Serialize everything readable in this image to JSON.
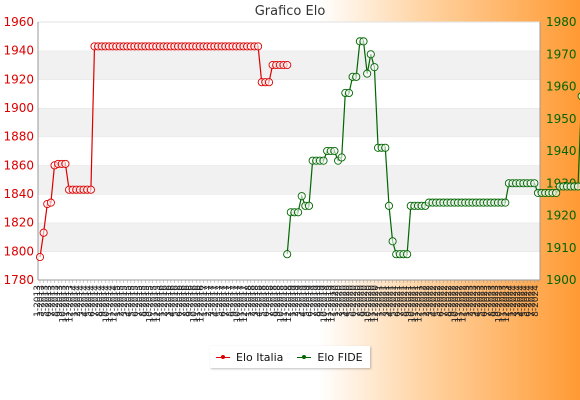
{
  "chart_data": {
    "type": "line",
    "title": "Grafico Elo",
    "y_left": {
      "min": 1780,
      "max": 1960,
      "ticks": [
        1780,
        1800,
        1820,
        1840,
        1860,
        1880,
        1900,
        1920,
        1940,
        1960
      ]
    },
    "y_right": {
      "min": 1900,
      "max": 1980,
      "ticks": [
        1900,
        1910,
        1920,
        1930,
        1940,
        1950,
        1960,
        1970,
        1980
      ]
    },
    "grid": "horizontal bands",
    "legend_position": "bottom-center",
    "x_tick_labels": [
      "1-2013",
      "3-2013",
      "5-2013",
      "6-2013",
      "7-2013",
      "8-2013",
      "9-2013",
      "10-2013",
      "11-2013",
      "12-2013",
      "1-2014",
      "2-2014",
      "3-2014",
      "4-2014",
      "5-2014",
      "6-2014",
      "7-2014",
      "8-2014",
      "9-2014",
      "10-2014",
      "11-2014",
      "12-2014",
      "1-2015",
      "2-2015",
      "3-2015",
      "4-2015",
      "5-2015",
      "6-2015",
      "7-2015",
      "8-2015",
      "9-2015",
      "10-2015",
      "11-2015",
      "12-2015",
      "1-2016",
      "2-2016",
      "3-2016",
      "4-2016",
      "5-2016",
      "6-2016",
      "7-2016",
      "8-2016",
      "9-2016",
      "10-2016",
      "11-2016",
      "12-2016",
      "1-2017",
      "2-2017",
      "3-2017",
      "4-2017",
      "5-2017",
      "6-2017",
      "7-2017",
      "8-2017",
      "9-2017",
      "10-2017",
      "11-2017",
      "12-2017",
      "1-2018",
      "2-2018",
      "3-2018",
      "4-2018",
      "5-2018",
      "6-2018",
      "7-2018",
      "8-2018",
      "9-2018",
      "10-2018",
      "11-2018",
      "12-2018",
      "1-2019",
      "2-2019",
      "3-2019",
      "4-2019",
      "5-2019",
      "6-2019",
      "7-2019",
      "8-2019",
      "9-2019",
      "10-2019",
      "11-2019",
      "12-2019",
      "1-2020",
      "2-2020",
      "3-2020",
      "4-2020",
      "5-2020",
      "6-2020",
      "7-2020",
      "8-2020",
      "9-2020",
      "10-2020",
      "11-2020",
      "12-2020",
      "1-2021",
      "2-2021",
      "3-2021",
      "4-2021",
      "5-2021",
      "6-2021",
      "7-2021",
      "8-2021",
      "9-2021",
      "10-2021",
      "11-2021",
      "12-2021",
      "1-2022",
      "2-2022",
      "3-2022",
      "4-2022",
      "5-2022",
      "6-2022",
      "7-2022",
      "8-2022",
      "9-2022",
      "10-2022",
      "11-2022",
      "12-2022",
      "1-2023",
      "2-2023",
      "3-2023",
      "4-2023",
      "5-2023",
      "6-2023",
      "7-2023",
      "8-2023",
      "9-2023",
      "10-2023",
      "11-2023",
      "12-2023",
      "1-2024",
      "2-2024",
      "3-2024",
      "4-2024",
      "5-2024",
      "6-2024",
      "7-2024",
      "8-2024"
    ],
    "series": [
      {
        "name": "Elo Italia",
        "axis": "left",
        "color": "#dd0000",
        "values": [
          1796,
          1813,
          1833,
          1834,
          1860,
          1861,
          1861,
          1861,
          1843,
          1843,
          1843,
          1843,
          1843,
          1843,
          1843,
          1943,
          1943,
          1943,
          1943,
          1943,
          1943,
          1943,
          1943,
          1943,
          1943,
          1943,
          1943,
          1943,
          1943,
          1943,
          1943,
          1943,
          1943,
          1943,
          1943,
          1943,
          1943,
          1943,
          1943,
          1943,
          1943,
          1943,
          1943,
          1943,
          1943,
          1943,
          1943,
          1943,
          1943,
          1943,
          1943,
          1943,
          1943,
          1943,
          1943,
          1943,
          1943,
          1943,
          1943,
          1943,
          1943,
          1918,
          1918,
          1918,
          1930,
          1930,
          1930,
          1930,
          1930,
          null,
          null,
          null,
          null,
          null,
          null,
          null,
          null,
          null,
          null,
          null,
          null,
          null,
          null,
          null,
          null,
          null,
          null,
          null,
          null,
          null,
          null,
          null,
          null,
          null,
          null,
          null,
          null,
          null,
          null,
          null,
          null,
          null,
          null,
          null,
          null,
          null,
          null,
          null,
          null,
          null,
          null,
          null,
          null,
          null,
          null,
          null,
          null,
          null,
          null,
          null,
          null,
          null,
          null,
          null,
          null,
          null,
          null,
          null,
          null,
          null,
          null,
          null,
          null,
          null,
          null,
          null,
          null,
          null,
          null,
          null,
          null,
          null,
          null
        ]
      },
      {
        "name": "Elo FIDE",
        "axis": "right",
        "color": "#006600",
        "values": [
          null,
          null,
          null,
          null,
          null,
          null,
          null,
          null,
          null,
          null,
          null,
          null,
          null,
          null,
          null,
          null,
          null,
          null,
          null,
          null,
          null,
          null,
          null,
          null,
          null,
          null,
          null,
          null,
          null,
          null,
          null,
          null,
          null,
          null,
          null,
          null,
          null,
          null,
          null,
          null,
          null,
          null,
          null,
          null,
          null,
          null,
          null,
          null,
          null,
          null,
          null,
          null,
          null,
          null,
          null,
          null,
          null,
          null,
          null,
          null,
          null,
          null,
          null,
          null,
          null,
          null,
          null,
          null,
          1908,
          1921,
          1921,
          1921,
          1926,
          1923,
          1923,
          1937,
          1937,
          1937,
          1937,
          1940,
          1940,
          1940,
          1937,
          1938,
          1958,
          1958,
          1963,
          1963,
          1974,
          1974,
          1964,
          1970,
          1966,
          1941,
          1941,
          1941,
          1923,
          1912,
          1908,
          1908,
          1908,
          1908,
          1923,
          1923,
          1923,
          1923,
          1923,
          1924,
          1924,
          1924,
          1924,
          1924,
          1924,
          1924,
          1924,
          1924,
          1924,
          1924,
          1924,
          1924,
          1924,
          1924,
          1924,
          1924,
          1924,
          1924,
          1924,
          1924,
          1924,
          1930,
          1930,
          1930,
          1930,
          1930,
          1930,
          1930,
          1930,
          1927,
          1927,
          1927,
          1927,
          1927,
          1927,
          1929,
          1929,
          1929,
          1929,
          1929,
          1929,
          1957,
          1943,
          1943,
          1943,
          1943,
          1943,
          1943,
          1943,
          1943,
          1929,
          1929,
          1929,
          1929,
          1929,
          1929
        ]
      }
    ]
  }
}
